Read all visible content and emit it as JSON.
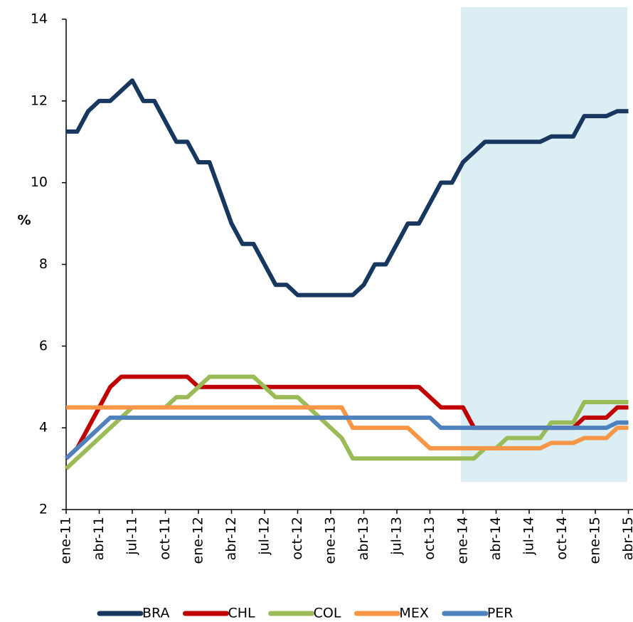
{
  "chart_data": {
    "type": "line",
    "y_label": "%",
    "categories": [
      "ene-11",
      null,
      null,
      "abr-11",
      null,
      null,
      "jul-11",
      null,
      null,
      "oct-11",
      null,
      null,
      "ene-12",
      null,
      null,
      "abr-12",
      null,
      null,
      "jul-12",
      null,
      null,
      "oct-12",
      null,
      null,
      "ene-13",
      null,
      null,
      "abr-13",
      null,
      null,
      "jul-13",
      null,
      null,
      "oct-13",
      null,
      null,
      "ene-14",
      null,
      null,
      "abr-14",
      null,
      null,
      "jul-14",
      null,
      null,
      "oct-14",
      null,
      null,
      "ene-15",
      null,
      null,
      "abr-15"
    ],
    "ylim": [
      2,
      14
    ],
    "yticks": [
      2,
      4,
      6,
      8,
      10,
      12,
      14
    ],
    "legend": "bottom",
    "series": [
      {
        "name": "BRA",
        "color": "#17375e",
        "values": [
          11.25,
          11.25,
          11.75,
          12,
          12,
          12.25,
          12.5,
          12,
          12,
          11.5,
          11,
          11,
          10.5,
          10.5,
          9.75,
          9,
          8.5,
          8.5,
          8,
          7.5,
          7.5,
          7.25,
          7.25,
          7.25,
          7.25,
          7.25,
          7.25,
          7.5,
          8,
          8,
          8.5,
          9,
          9,
          9.5,
          10,
          10,
          10.5,
          10.75,
          11,
          11,
          11,
          11,
          11,
          11,
          11.13,
          11.13,
          11.13,
          11.63,
          11.63,
          11.63,
          11.75,
          11.75
        ]
      },
      {
        "name": "CHL",
        "color": "#c00000",
        "values": [
          3.25,
          3.5,
          4,
          4.5,
          5,
          5.25,
          5.25,
          5.25,
          5.25,
          5.25,
          5.25,
          5.25,
          5,
          5,
          5,
          5,
          5,
          5,
          5,
          5,
          5,
          5,
          5,
          5,
          5,
          5,
          5,
          5,
          5,
          5,
          5,
          5,
          5,
          4.75,
          4.5,
          4.5,
          4.5,
          4,
          4,
          4,
          4,
          4,
          4,
          4,
          4,
          4,
          4,
          4.25,
          4.25,
          4.25,
          4.5,
          4.5
        ]
      },
      {
        "name": "COL",
        "color": "#9bbb59",
        "values": [
          3,
          3.25,
          3.5,
          3.75,
          4,
          4.25,
          4.5,
          4.5,
          4.5,
          4.5,
          4.75,
          4.75,
          5,
          5.25,
          5.25,
          5.25,
          5.25,
          5.25,
          5,
          4.75,
          4.75,
          4.75,
          4.5,
          4.25,
          4,
          3.75,
          3.25,
          3.25,
          3.25,
          3.25,
          3.25,
          3.25,
          3.25,
          3.25,
          3.25,
          3.25,
          3.25,
          3.25,
          3.5,
          3.5,
          3.75,
          3.75,
          3.75,
          3.75,
          4.13,
          4.13,
          4.13,
          4.63,
          4.63,
          4.63,
          4.63,
          4.63
        ]
      },
      {
        "name": "MEX",
        "color": "#f79646",
        "values": [
          4.5,
          4.5,
          4.5,
          4.5,
          4.5,
          4.5,
          4.5,
          4.5,
          4.5,
          4.5,
          4.5,
          4.5,
          4.5,
          4.5,
          4.5,
          4.5,
          4.5,
          4.5,
          4.5,
          4.5,
          4.5,
          4.5,
          4.5,
          4.5,
          4.5,
          4.5,
          4,
          4,
          4,
          4,
          4,
          4,
          3.75,
          3.5,
          3.5,
          3.5,
          3.5,
          3.5,
          3.5,
          3.5,
          3.5,
          3.5,
          3.5,
          3.5,
          3.63,
          3.63,
          3.63,
          3.75,
          3.75,
          3.75,
          4,
          4
        ]
      },
      {
        "name": "PER",
        "color": "#4f81bd",
        "values": [
          3.25,
          3.5,
          3.75,
          4,
          4.25,
          4.25,
          4.25,
          4.25,
          4.25,
          4.25,
          4.25,
          4.25,
          4.25,
          4.25,
          4.25,
          4.25,
          4.25,
          4.25,
          4.25,
          4.25,
          4.25,
          4.25,
          4.25,
          4.25,
          4.25,
          4.25,
          4.25,
          4.25,
          4.25,
          4.25,
          4.25,
          4.25,
          4.25,
          4.25,
          4,
          4,
          4,
          4,
          4,
          4,
          4,
          4,
          4,
          4,
          4,
          4,
          4,
          4,
          4,
          4,
          4.13,
          4.13
        ]
      }
    ]
  }
}
